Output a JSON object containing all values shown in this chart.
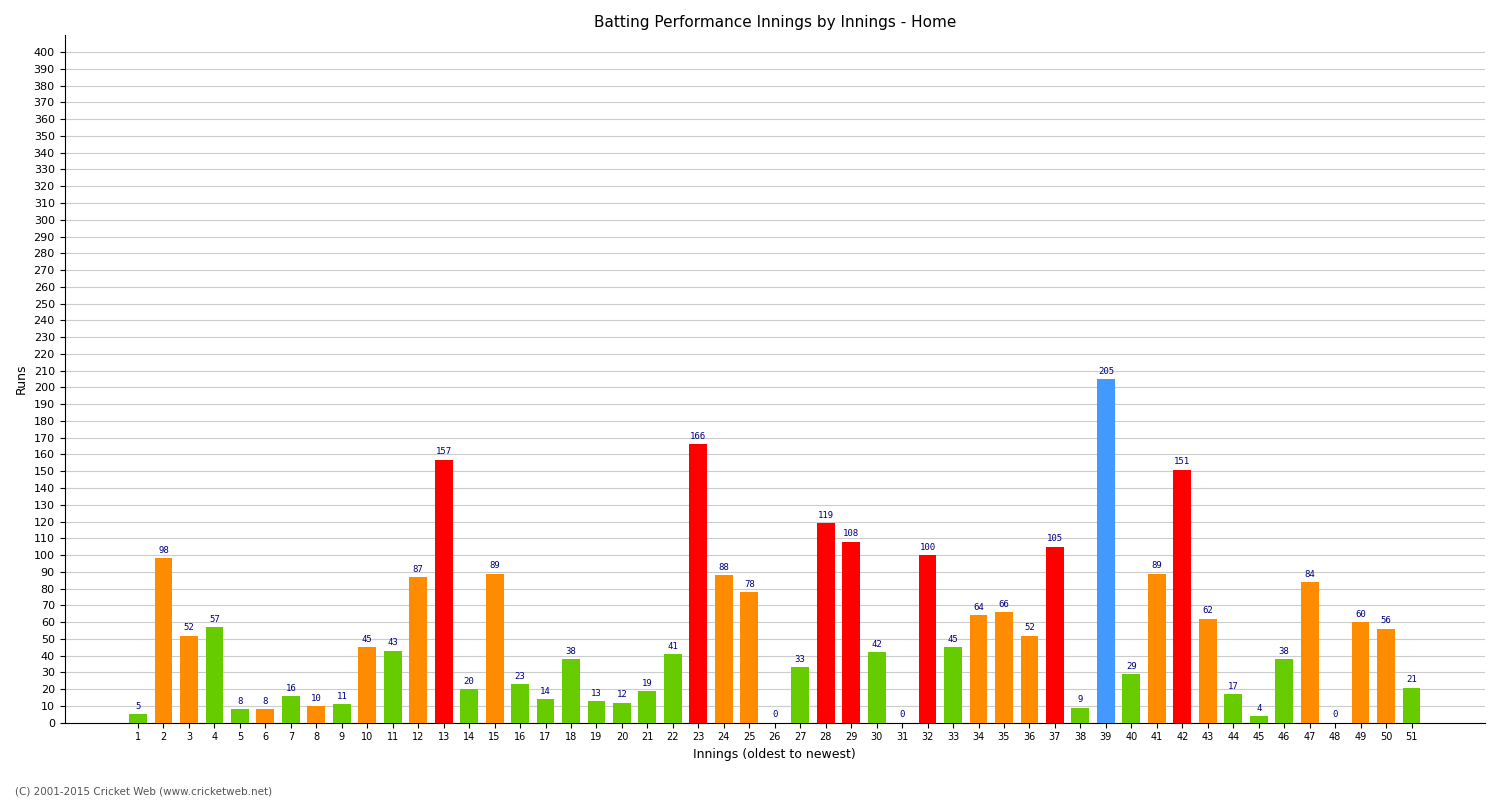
{
  "innings": [
    1,
    2,
    3,
    4,
    5,
    6,
    7,
    8,
    9,
    10,
    11,
    12,
    13,
    14,
    15,
    16,
    17,
    18,
    19,
    20,
    21,
    22,
    23,
    24,
    25,
    26,
    27,
    28,
    29,
    30,
    31,
    32,
    33,
    34,
    35,
    36,
    37,
    38,
    39,
    40,
    41,
    42,
    43,
    44,
    45,
    46,
    47,
    48,
    49,
    50,
    51
  ],
  "values": [
    5,
    98,
    52,
    57,
    8,
    8,
    16,
    10,
    11,
    45,
    43,
    87,
    157,
    20,
    89,
    23,
    14,
    38,
    13,
    12,
    19,
    41,
    166,
    88,
    78,
    0,
    33,
    119,
    108,
    42,
    0,
    100,
    45,
    64,
    66,
    52,
    105,
    9,
    205,
    29,
    89,
    151,
    62,
    17,
    4,
    38,
    84,
    0,
    60,
    56,
    21
  ],
  "colors": [
    "#66cc00",
    "#ff8c00",
    "#ff8c00",
    "#66cc00",
    "#66cc00",
    "#ff8c00",
    "#66cc00",
    "#ff8c00",
    "#66cc00",
    "#ff8c00",
    "#66cc00",
    "#ff8c00",
    "#ff0000",
    "#66cc00",
    "#ff8c00",
    "#66cc00",
    "#66cc00",
    "#66cc00",
    "#66cc00",
    "#66cc00",
    "#66cc00",
    "#66cc00",
    "#ff0000",
    "#ff8c00",
    "#ff8c00",
    "#66cc00",
    "#66cc00",
    "#ff0000",
    "#ff0000",
    "#66cc00",
    "#66cc00",
    "#ff0000",
    "#66cc00",
    "#ff8c00",
    "#ff8c00",
    "#ff8c00",
    "#ff0000",
    "#66cc00",
    "#4499ff",
    "#66cc00",
    "#ff8c00",
    "#ff0000",
    "#ff8c00",
    "#66cc00",
    "#66cc00",
    "#66cc00",
    "#ff8c00",
    "#66cc00",
    "#ff8c00",
    "#ff8c00",
    "#66cc00"
  ],
  "title": "Batting Performance Innings by Innings - Home",
  "xlabel": "Innings (oldest to newest)",
  "ylabel": "Runs",
  "ylim": [
    0,
    410
  ],
  "yticks": [
    0,
    10,
    20,
    30,
    40,
    50,
    60,
    70,
    80,
    90,
    100,
    110,
    120,
    130,
    140,
    150,
    160,
    170,
    180,
    190,
    200,
    210,
    220,
    230,
    240,
    250,
    260,
    270,
    280,
    290,
    300,
    310,
    320,
    330,
    340,
    350,
    360,
    370,
    380,
    390,
    400
  ],
  "background_color": "#ffffff",
  "grid_color": "#cccccc",
  "label_color": "#000080",
  "footer": "(C) 2001-2015 Cricket Web (www.cricketweb.net)"
}
